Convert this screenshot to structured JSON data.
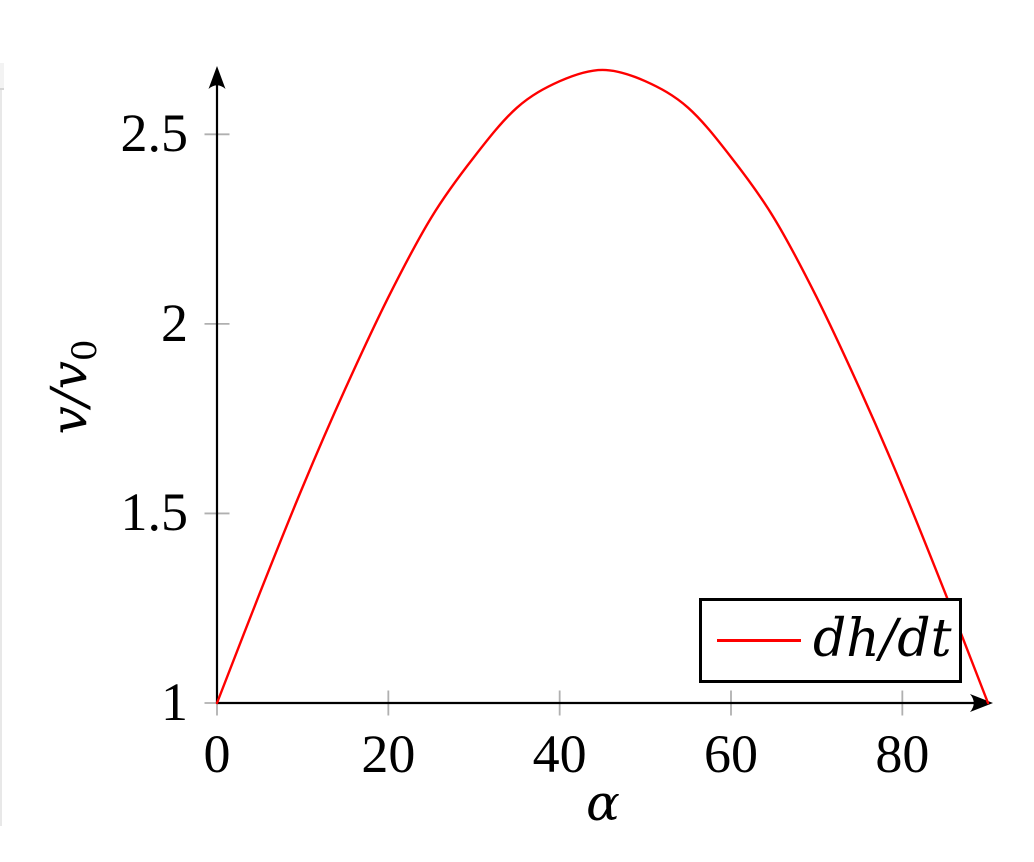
{
  "page": {
    "background": "#ffffff",
    "left_page_edge_artifact": "thin light-gray page edge line along left side"
  },
  "chart_data": {
    "type": "line",
    "title": "",
    "xlabel": "α",
    "ylabel": "v/v0",
    "ylabel_parts": [
      "v/v",
      "0"
    ],
    "xlim": [
      0,
      90
    ],
    "ylim": [
      1,
      2.667
    ],
    "grid": false,
    "axis_color": "#000000",
    "tick_color": "#b0b0b0",
    "x_ticks": {
      "values": [
        0,
        20,
        40,
        60,
        80
      ],
      "labels": [
        "0",
        "20",
        "40",
        "60",
        "80"
      ]
    },
    "y_ticks": {
      "values": [
        1,
        1.5,
        2,
        2.5
      ],
      "labels": [
        "1",
        "1.5",
        "2",
        "2.5"
      ]
    },
    "legend": {
      "position": "inside lower right",
      "entries": [
        {
          "label": "dh/dt",
          "color": "#fe0000"
        }
      ]
    },
    "series": [
      {
        "name": "dh/dt",
        "color": "#fe0000",
        "x": [
          0,
          5,
          10,
          15,
          20,
          25,
          30,
          35,
          40,
          45,
          50,
          55,
          60,
          65,
          70,
          75,
          80,
          85,
          90
        ],
        "y": [
          1.0,
          1.29,
          1.57,
          1.83,
          2.07,
          2.28,
          2.44,
          2.57,
          2.64,
          2.67,
          2.64,
          2.57,
          2.44,
          2.28,
          2.07,
          1.83,
          1.57,
          1.29,
          1.0
        ]
      }
    ]
  }
}
